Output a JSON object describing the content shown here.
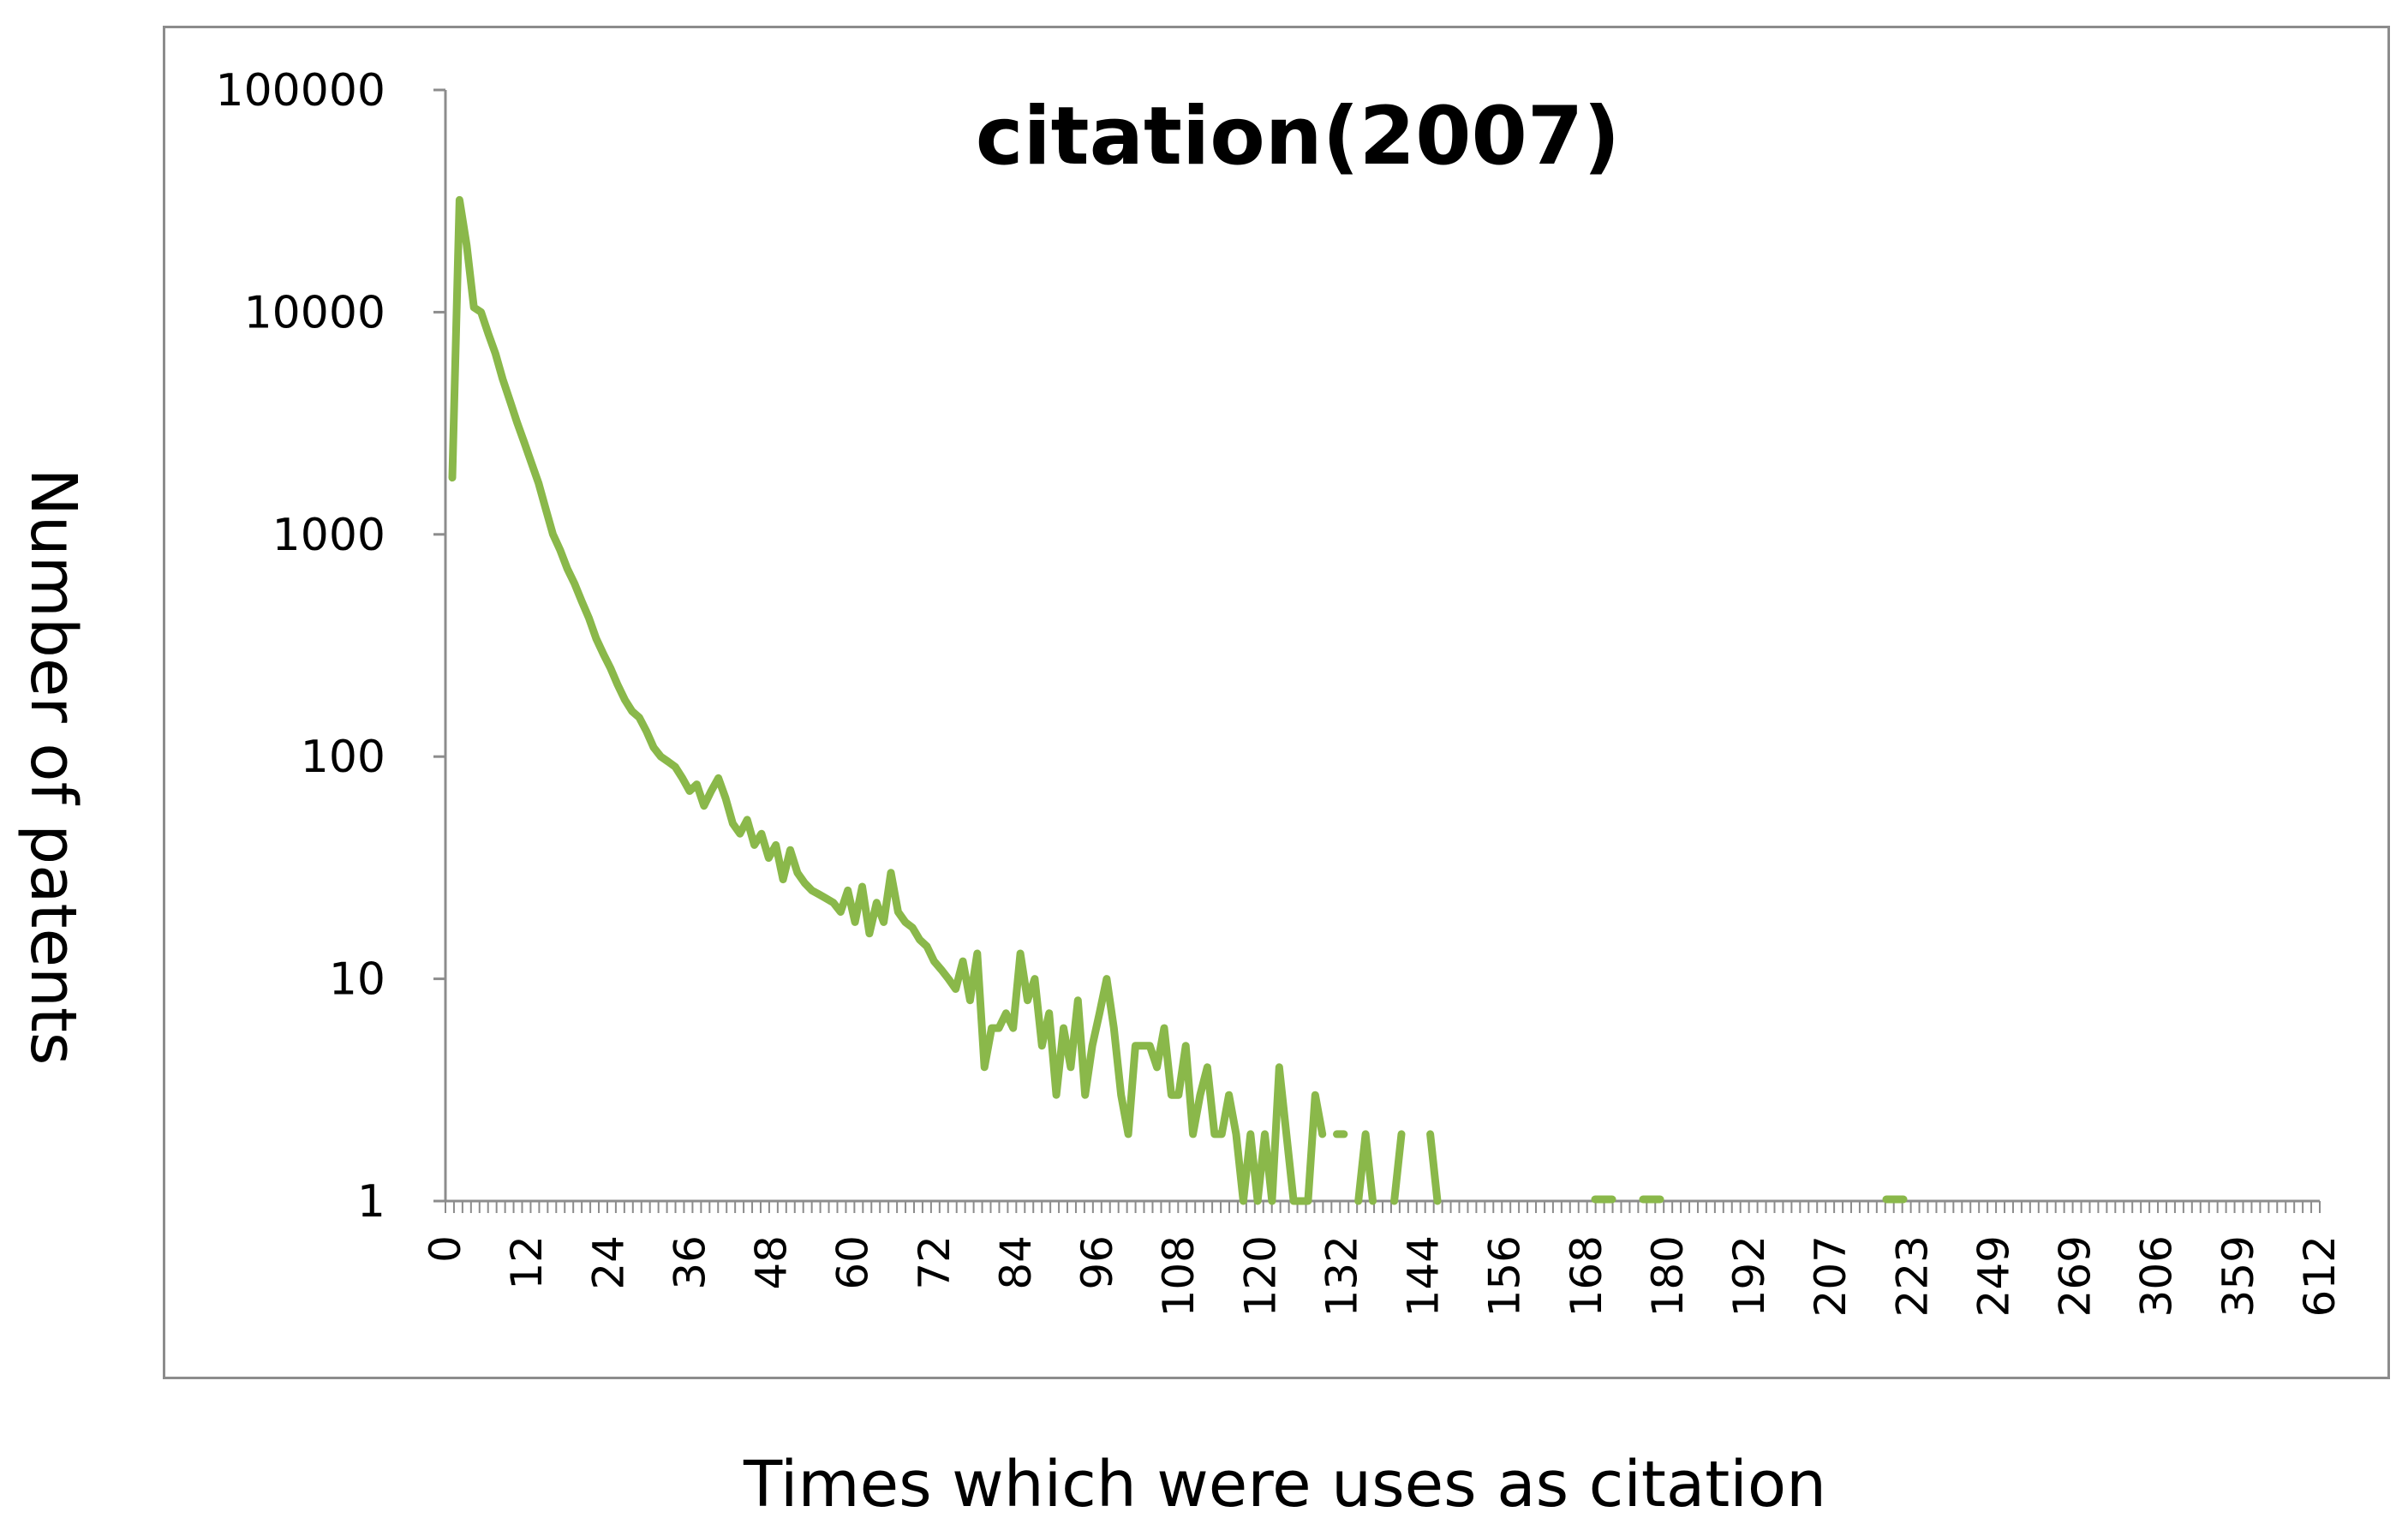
{
  "chart_data": {
    "type": "line",
    "title": "citation(2007)",
    "xlabel": "Times which were uses as citation",
    "ylabel": "Number of patents",
    "yscale": "log",
    "ylim": [
      1,
      100000
    ],
    "grid": false,
    "legend": "none",
    "ytick_labels": [
      "1",
      "10",
      "100",
      "1000",
      "10000",
      "100000"
    ],
    "ytick_values": [
      1,
      10,
      100,
      1000,
      10000,
      100000
    ],
    "xtick_labels": [
      "0",
      "12",
      "24",
      "36",
      "48",
      "60",
      "72",
      "84",
      "96",
      "108",
      "120",
      "132",
      "144",
      "156",
      "168",
      "180",
      "192",
      "207",
      "223",
      "249",
      "269",
      "306",
      "359",
      "612"
    ],
    "line_color": "#8ab84a",
    "series": [
      {
        "values": [
          1800,
          32000,
          20000,
          10500,
          10000,
          8000,
          6500,
          5000,
          4000,
          3200,
          2600,
          2100,
          1700,
          1300,
          1000,
          850,
          700,
          600,
          500,
          420,
          340,
          290,
          250,
          210,
          180,
          160,
          150,
          130,
          110,
          100,
          95,
          90,
          80,
          70,
          75,
          60,
          70,
          80,
          65,
          50,
          45,
          52,
          40,
          45,
          35,
          40,
          28,
          38,
          30,
          27,
          25,
          24,
          23,
          22,
          20,
          25,
          18,
          26,
          16,
          22,
          18,
          30,
          20,
          18,
          17,
          15,
          14,
          12,
          11,
          10,
          9,
          12,
          8,
          13,
          4,
          6,
          6,
          7,
          6,
          13,
          8,
          10,
          5,
          7,
          3,
          6,
          4,
          8,
          3,
          5,
          7,
          10,
          6,
          3,
          2,
          5,
          5,
          5,
          4,
          6,
          3,
          3,
          5,
          2,
          3,
          4,
          2,
          2,
          3,
          2,
          1,
          2,
          1,
          2,
          1,
          4,
          2,
          1,
          1,
          1,
          3,
          2,
          null,
          2,
          2,
          null,
          1,
          2,
          1,
          null,
          null,
          1,
          2,
          null,
          null,
          null,
          2,
          1
        ]
      }
    ]
  }
}
